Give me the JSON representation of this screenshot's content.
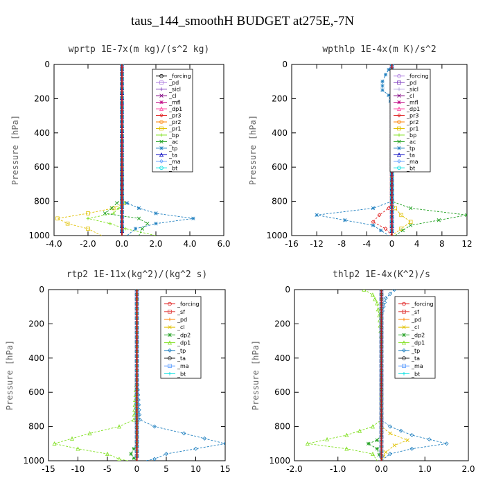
{
  "figure_title": "taus_144_smoothH  BUDGET at275E,-7N",
  "chart_data": [
    {
      "type": "line",
      "title": "wprtp  1E-7x(m kg)/(s^2 kg)",
      "ylabel": "Pressure [hPa]",
      "xlim": [
        -4,
        6
      ],
      "ylim": [
        1000,
        0
      ],
      "x_ticks": [
        "-4.0",
        "-2.0",
        "0.0",
        "2.0",
        "4.0",
        "6.0"
      ],
      "x_tick_values": [
        -4,
        -2,
        0,
        2,
        4,
        6
      ],
      "y_ticks": [
        "0",
        "200",
        "400",
        "600",
        "800",
        "1000"
      ],
      "y_tick_values": [
        0,
        200,
        400,
        600,
        800,
        1000
      ],
      "legend_position": "top-right",
      "series": [
        {
          "name": "_forcing",
          "color": "#000000",
          "x": [
            0,
            0,
            0,
            0,
            0
          ],
          "y": [
            0,
            250,
            500,
            750,
            1000
          ]
        },
        {
          "name": "_pd",
          "color": "#b080e0",
          "x": [
            0,
            0,
            0,
            0,
            0
          ],
          "y": [
            0,
            250,
            500,
            750,
            1000
          ]
        },
        {
          "name": "_sicl",
          "color": "#8040c0",
          "x": [
            0,
            0,
            0,
            0,
            0
          ],
          "y": [
            0,
            250,
            500,
            750,
            1000
          ]
        },
        {
          "name": "_cl",
          "color": "#800080",
          "x": [
            0,
            0,
            0,
            0,
            0
          ],
          "y": [
            0,
            250,
            500,
            750,
            1000
          ]
        },
        {
          "name": "_mfl",
          "color": "#c00080",
          "x": [
            0,
            0,
            0,
            0,
            0
          ],
          "y": [
            0,
            250,
            500,
            750,
            1000
          ]
        },
        {
          "name": "_dp1",
          "color": "#ff40a0",
          "x": [
            0,
            0,
            0,
            0,
            0
          ],
          "y": [
            0,
            250,
            500,
            750,
            1000
          ]
        },
        {
          "name": "_pr3",
          "color": "#e02020",
          "x": [
            0,
            0,
            0,
            0,
            0
          ],
          "y": [
            0,
            250,
            500,
            750,
            1000
          ]
        },
        {
          "name": "_pr2",
          "color": "#ff8000",
          "x": [
            0,
            0,
            0,
            0,
            0
          ],
          "y": [
            0,
            250,
            500,
            750,
            1000
          ]
        },
        {
          "name": "_pr1",
          "color": "#e0c000",
          "x": [
            0,
            0,
            0,
            0,
            0.1,
            -0.5,
            -2,
            -3.8,
            -3.2,
            -2,
            -1.2
          ],
          "y": [
            0,
            500,
            760,
            790,
            810,
            840,
            870,
            900,
            930,
            960,
            1000
          ]
        },
        {
          "name": "_bp",
          "color": "#80e020",
          "x": [
            0,
            0,
            0,
            0,
            0.2,
            -0.2,
            -0.5,
            -2,
            -0.7,
            0.2,
            2
          ],
          "y": [
            0,
            500,
            760,
            790,
            810,
            840,
            870,
            900,
            930,
            960,
            1000
          ]
        },
        {
          "name": "_ac",
          "color": "#20a020",
          "x": [
            0,
            0,
            0,
            0,
            -0.3,
            -0.6,
            -1,
            1,
            1.5,
            1.2,
            1
          ],
          "y": [
            0,
            500,
            760,
            790,
            810,
            840,
            870,
            900,
            930,
            960,
            1000
          ]
        },
        {
          "name": "_tp",
          "color": "#2080c0",
          "x": [
            0,
            0,
            0,
            0,
            0.3,
            1,
            2,
            4.2,
            2,
            0.8,
            0.3
          ],
          "y": [
            0,
            500,
            760,
            790,
            810,
            840,
            870,
            900,
            930,
            960,
            1000
          ]
        },
        {
          "name": "_ta",
          "color": "#0000c0",
          "x": [
            0,
            0,
            0,
            0,
            0
          ],
          "y": [
            0,
            250,
            500,
            750,
            1000
          ]
        },
        {
          "name": "_ma",
          "color": "#60a0ff",
          "x": [
            0,
            0,
            0,
            0,
            0
          ],
          "y": [
            0,
            250,
            500,
            750,
            1000
          ]
        },
        {
          "name": "_bt",
          "color": "#00e0e0",
          "x": [
            0,
            0,
            0,
            0,
            0
          ],
          "y": [
            0,
            250,
            500,
            750,
            1000
          ]
        }
      ]
    },
    {
      "type": "line",
      "title": "wpthlp  1E-4x(m K)/s^2",
      "ylabel": "Pressure [hPa]",
      "xlim": [
        -16,
        12
      ],
      "ylim": [
        1000,
        0
      ],
      "x_ticks": [
        "-16",
        "-12",
        "-8",
        "-4",
        "0",
        "4",
        "8",
        "12"
      ],
      "x_tick_values": [
        -16,
        -12,
        -8,
        -4,
        0,
        4,
        8,
        12
      ],
      "y_ticks": [
        "0",
        "200",
        "400",
        "600",
        "800",
        "1000"
      ],
      "y_tick_values": [
        0,
        200,
        400,
        600,
        800,
        1000
      ],
      "legend_position": "top-right",
      "series": [
        {
          "name": "_forcing",
          "color": "#b080e0",
          "x": [
            0,
            0,
            0,
            0,
            0
          ],
          "y": [
            0,
            250,
            500,
            750,
            1000
          ]
        },
        {
          "name": "_pd",
          "color": "#8040c0",
          "x": [
            0,
            0,
            0,
            0,
            0
          ],
          "y": [
            0,
            250,
            500,
            750,
            1000
          ]
        },
        {
          "name": "_sicl",
          "color": "#b0a0e0",
          "x": [
            0,
            0,
            0,
            0,
            0
          ],
          "y": [
            0,
            250,
            500,
            750,
            1000
          ]
        },
        {
          "name": "_cl",
          "color": "#800080",
          "x": [
            0,
            0,
            0,
            0,
            0
          ],
          "y": [
            0,
            250,
            500,
            750,
            1000
          ]
        },
        {
          "name": "_mfl",
          "color": "#c00080",
          "x": [
            0,
            0,
            0,
            0,
            0
          ],
          "y": [
            0,
            250,
            500,
            750,
            1000
          ]
        },
        {
          "name": "_dp1",
          "color": "#ff40a0",
          "x": [
            0,
            0,
            0,
            0,
            0
          ],
          "y": [
            0,
            250,
            500,
            750,
            1000
          ]
        },
        {
          "name": "_pr3",
          "color": "#e02020",
          "x": [
            0,
            0,
            0,
            -0.5,
            -2,
            -3,
            -1,
            0
          ],
          "y": [
            0,
            500,
            800,
            840,
            880,
            920,
            960,
            1000
          ]
        },
        {
          "name": "_pr2",
          "color": "#ff8000",
          "x": [
            0,
            0,
            0,
            0,
            0
          ],
          "y": [
            0,
            250,
            500,
            750,
            1000
          ]
        },
        {
          "name": "_pr1",
          "color": "#e0c000",
          "x": [
            0,
            0,
            0,
            0.5,
            1.5,
            3,
            1.5,
            0
          ],
          "y": [
            0,
            500,
            800,
            840,
            880,
            920,
            960,
            1000
          ]
        },
        {
          "name": "_bp",
          "color": "#80e020",
          "x": [
            0,
            0,
            0,
            0,
            0
          ],
          "y": [
            0,
            250,
            500,
            750,
            1000
          ]
        },
        {
          "name": "_ac",
          "color": "#20a020",
          "x": [
            0,
            0,
            0,
            3,
            12,
            3,
            0.5
          ],
          "y": [
            0,
            500,
            800,
            840,
            880,
            940,
            1000
          ]
        },
        {
          "name": "_tp",
          "color": "#2080c0",
          "x": [
            0,
            -1,
            -1.5,
            -1.5,
            -0.5,
            0,
            0,
            -3,
            -12,
            -3,
            -0.5
          ],
          "y": [
            0,
            60,
            100,
            150,
            180,
            250,
            800,
            840,
            880,
            940,
            1000
          ]
        },
        {
          "name": "_ta",
          "color": "#0000c0",
          "x": [
            0,
            0,
            0,
            0,
            0
          ],
          "y": [
            0,
            250,
            500,
            750,
            1000
          ]
        },
        {
          "name": "_ma",
          "color": "#60a0ff",
          "x": [
            0,
            0,
            0,
            0,
            0
          ],
          "y": [
            0,
            250,
            500,
            750,
            1000
          ]
        },
        {
          "name": "_bt",
          "color": "#00e0e0",
          "x": [
            0,
            0,
            0,
            0,
            0
          ],
          "y": [
            0,
            250,
            500,
            750,
            1000
          ]
        }
      ]
    },
    {
      "type": "line",
      "title": "rtp2  1E-11x(kg^2)/(kg^2 s)",
      "ylabel": "Pressure [hPa]",
      "xlim": [
        -15,
        15
      ],
      "ylim": [
        1000,
        0
      ],
      "x_ticks": [
        "-15",
        "-10",
        "-5",
        "0",
        "5",
        "10",
        "15"
      ],
      "x_tick_values": [
        -15,
        -10,
        -5,
        0,
        5,
        10,
        15
      ],
      "y_ticks": [
        "0",
        "200",
        "400",
        "600",
        "800",
        "1000"
      ],
      "y_tick_values": [
        0,
        200,
        400,
        600,
        800,
        1000
      ],
      "legend_position": "top-right",
      "series": [
        {
          "name": "_forcing",
          "color": "#e02020",
          "x": [
            0,
            0,
            0,
            0,
            0
          ],
          "y": [
            0,
            250,
            500,
            750,
            1000
          ]
        },
        {
          "name": "_sf",
          "color": "#e04040",
          "x": [
            0,
            0,
            0,
            0,
            0
          ],
          "y": [
            0,
            250,
            500,
            750,
            1000
          ]
        },
        {
          "name": "_pd",
          "color": "#ff8000",
          "x": [
            0,
            0,
            0,
            0,
            0
          ],
          "y": [
            0,
            250,
            500,
            750,
            1000
          ]
        },
        {
          "name": "_cl",
          "color": "#e0c000",
          "x": [
            0,
            0,
            0,
            0,
            0
          ],
          "y": [
            0,
            250,
            500,
            750,
            1000
          ]
        },
        {
          "name": "_dp2",
          "color": "#20a020",
          "x": [
            0,
            0,
            0,
            -0.5,
            -1,
            -0.5,
            0
          ],
          "y": [
            0,
            500,
            900,
            930,
            960,
            985,
            1000
          ]
        },
        {
          "name": "_dp1",
          "color": "#80e020",
          "x": [
            0,
            0,
            -0.5,
            -3,
            -8,
            -14,
            -10,
            -5,
            -3,
            -1.5
          ],
          "y": [
            0,
            500,
            760,
            800,
            840,
            900,
            930,
            960,
            990,
            1000
          ]
        },
        {
          "name": "_tp",
          "color": "#2080c0",
          "x": [
            0,
            0,
            0.5,
            3,
            8,
            15,
            10,
            5,
            3,
            1.5
          ],
          "y": [
            0,
            500,
            760,
            800,
            840,
            900,
            930,
            960,
            990,
            1000
          ]
        },
        {
          "name": "_ta",
          "color": "#202020",
          "x": [
            0,
            0,
            0,
            0,
            0
          ],
          "y": [
            0,
            250,
            500,
            750,
            1000
          ]
        },
        {
          "name": "_ma",
          "color": "#60a0ff",
          "x": [
            0,
            0,
            0,
            0,
            0
          ],
          "y": [
            0,
            250,
            500,
            750,
            1000
          ]
        },
        {
          "name": "_bt",
          "color": "#00e0e0",
          "x": [
            0,
            0,
            0,
            0,
            0
          ],
          "y": [
            0,
            250,
            500,
            750,
            1000
          ]
        }
      ]
    },
    {
      "type": "line",
      "title": "thlp2  1E-4x(K^2)/s",
      "ylabel": "Pressure [hPa]",
      "xlim": [
        -2,
        2
      ],
      "ylim": [
        1000,
        0
      ],
      "x_ticks": [
        "-2.0",
        "-1.0",
        "0.0",
        "1.0",
        "2.0"
      ],
      "x_tick_values": [
        -2,
        -1,
        0,
        1,
        2
      ],
      "y_ticks": [
        "0",
        "200",
        "400",
        "600",
        "800",
        "1000"
      ],
      "y_tick_values": [
        0,
        200,
        400,
        600,
        800,
        1000
      ],
      "legend_position": "top-right",
      "series": [
        {
          "name": "_forcing",
          "color": "#e02020",
          "x": [
            0,
            0,
            0,
            0,
            0
          ],
          "y": [
            0,
            250,
            500,
            750,
            1000
          ]
        },
        {
          "name": "_sf",
          "color": "#e04040",
          "x": [
            0,
            0,
            0,
            0,
            0
          ],
          "y": [
            0,
            250,
            500,
            750,
            1000
          ]
        },
        {
          "name": "_pd",
          "color": "#ff8000",
          "x": [
            0,
            0,
            0,
            0,
            0
          ],
          "y": [
            0,
            250,
            500,
            750,
            1000
          ]
        },
        {
          "name": "_cl",
          "color": "#e0c000",
          "x": [
            0,
            0,
            0,
            0.2,
            0.6,
            0.3,
            0.1,
            0
          ],
          "y": [
            0,
            500,
            800,
            840,
            880,
            910,
            950,
            1000
          ]
        },
        {
          "name": "_dp2",
          "color": "#20a020",
          "x": [
            0,
            0,
            0,
            -0.1,
            -0.3,
            -0.1,
            0
          ],
          "y": [
            0,
            500,
            850,
            880,
            900,
            930,
            1000
          ]
        },
        {
          "name": "_dp1",
          "color": "#80e020",
          "x": [
            -0.4,
            -0.2,
            -0.1,
            -0.05,
            0,
            0,
            -0.2,
            -0.8,
            -1.7,
            -0.8,
            -0.2,
            -0.1
          ],
          "y": [
            0,
            30,
            80,
            150,
            300,
            760,
            800,
            850,
            900,
            930,
            960,
            1000
          ]
        },
        {
          "name": "_tp",
          "color": "#2080c0",
          "x": [
            0.3,
            0.1,
            0,
            0,
            0.2,
            0.7,
            1.5,
            0.7,
            0.2,
            0
          ],
          "y": [
            0,
            50,
            150,
            760,
            800,
            850,
            900,
            930,
            960,
            1000
          ]
        },
        {
          "name": "_ta",
          "color": "#202020",
          "x": [
            0,
            0,
            0,
            0,
            0
          ],
          "y": [
            0,
            250,
            500,
            750,
            1000
          ]
        },
        {
          "name": "_ma",
          "color": "#60a0ff",
          "x": [
            0,
            0,
            0,
            0,
            0
          ],
          "y": [
            0,
            250,
            500,
            750,
            1000
          ]
        },
        {
          "name": "_bt",
          "color": "#00e0e0",
          "x": [
            0,
            0,
            0,
            0,
            0
          ],
          "y": [
            0,
            250,
            500,
            750,
            1000
          ]
        }
      ]
    }
  ]
}
